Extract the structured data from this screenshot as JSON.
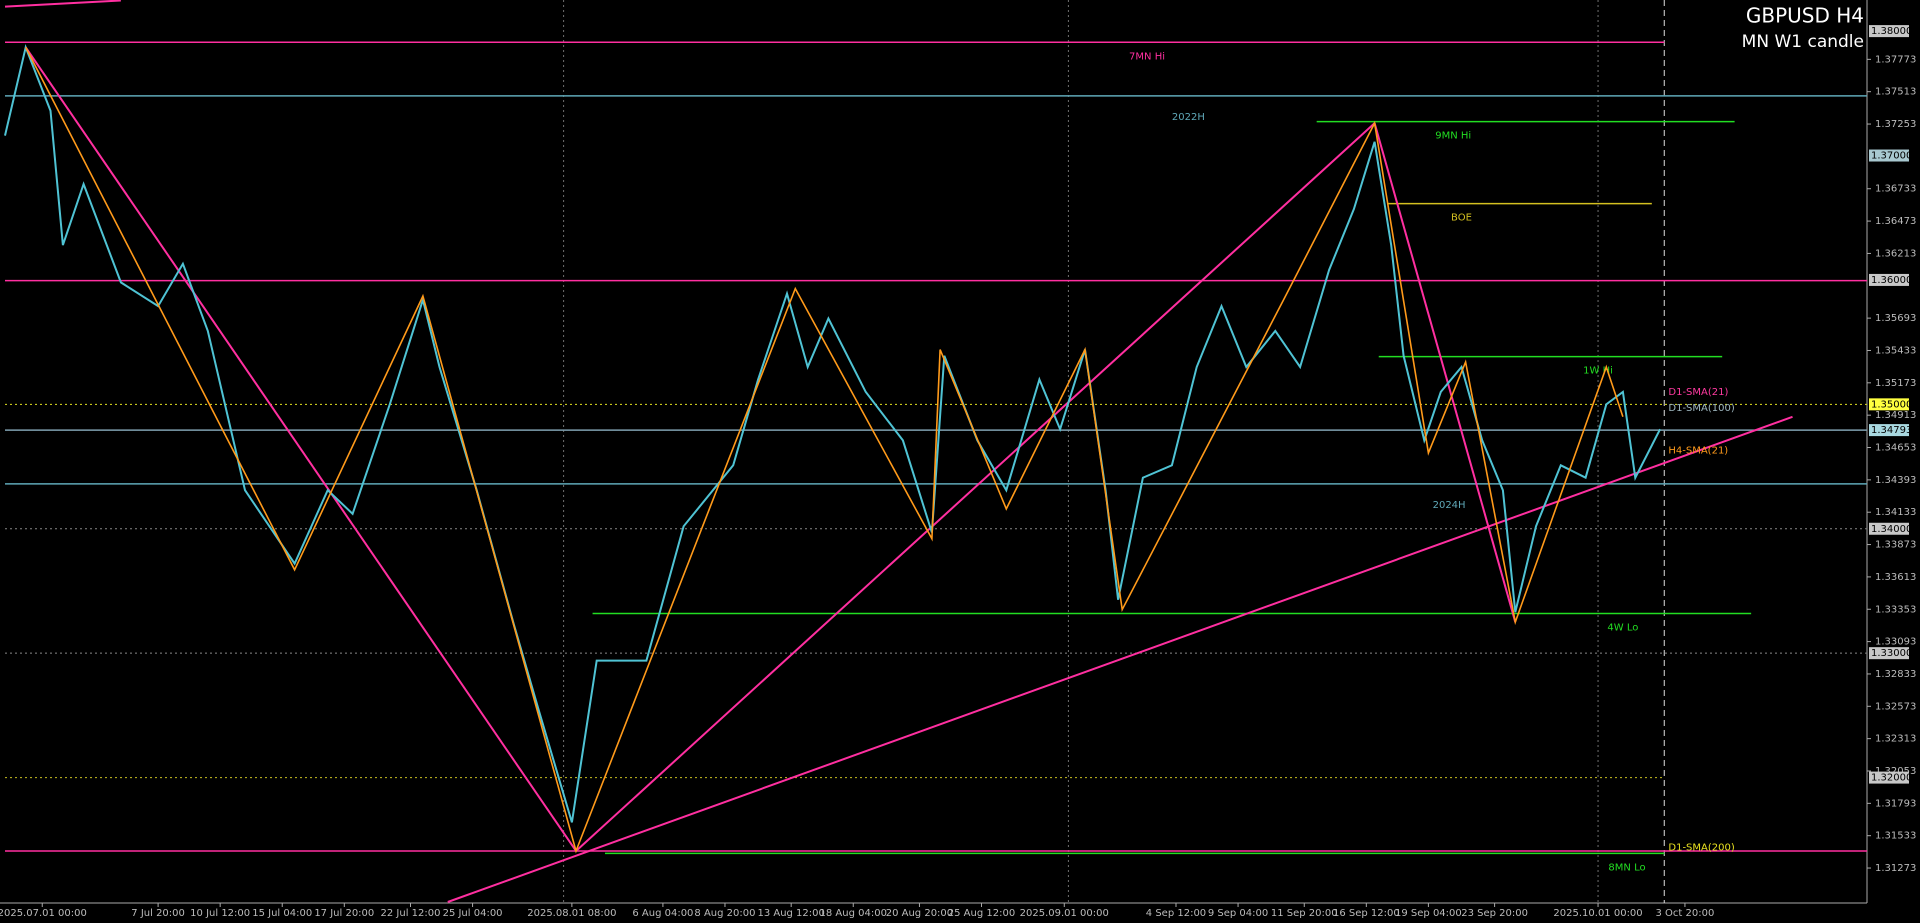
{
  "chart_data": {
    "type": "line",
    "title": "GBPUSD H4",
    "subtitle": "MN W1 candle",
    "xlim": [
      0,
      450
    ],
    "ylim": [
      1.31,
      1.3825
    ],
    "xticks": [
      {
        "value": 9,
        "label": "2025.07.01 00:00"
      },
      {
        "value": 37,
        "label": "7 Jul 20:00"
      },
      {
        "value": 52,
        "label": "10 Jul 12:00"
      },
      {
        "value": 67,
        "label": "15 Jul 04:00"
      },
      {
        "value": 82,
        "label": "17 Jul 20:00"
      },
      {
        "value": 98,
        "label": "22 Jul 12:00"
      },
      {
        "value": 113,
        "label": "25 Jul 04:00"
      },
      {
        "value": 137,
        "label": "2025.08.01 08:00"
      },
      {
        "value": 159,
        "label": "6 Aug 04:00"
      },
      {
        "value": 174,
        "label": "8 Aug 20:00"
      },
      {
        "value": 190,
        "label": "13 Aug 12:00"
      },
      {
        "value": 205,
        "label": "18 Aug 04:00"
      },
      {
        "value": 221,
        "label": "20 Aug 20:00"
      },
      {
        "value": 236,
        "label": "25 Aug 12:00"
      },
      {
        "value": 256,
        "label": "2025.09.01 00:00"
      },
      {
        "value": 283,
        "label": "4 Sep 12:00"
      },
      {
        "value": 298,
        "label": "9 Sep 04:00"
      },
      {
        "value": 314,
        "label": "11 Sep 20:00"
      },
      {
        "value": 329,
        "label": "16 Sep 12:00"
      },
      {
        "value": 344,
        "label": "19 Sep 04:00"
      },
      {
        "value": 360,
        "label": "23 Sep 20:00"
      },
      {
        "value": 385,
        "label": "2025.10.01 00:00"
      },
      {
        "value": 406,
        "label": "3 Oct 20:00"
      }
    ],
    "yticks": [
      1.37773,
      1.37513,
      1.37253,
      1.36733,
      1.36473,
      1.36213,
      1.35693,
      1.35433,
      1.35173,
      1.34913,
      1.34653,
      1.34393,
      1.34133,
      1.33873,
      1.33613,
      1.33353,
      1.33093,
      1.32833,
      1.32573,
      1.32313,
      1.32053,
      1.31793,
      1.31533,
      1.31273
    ],
    "price_labels": [
      {
        "value": 1.38,
        "label": "1.38000",
        "color": "#c8c8c8"
      },
      {
        "value": 1.37,
        "label": "1.37000",
        "color": "#a8c8d0"
      },
      {
        "value": 1.36,
        "label": "1.36000",
        "color": "#c8c8c8"
      },
      {
        "value": 1.35,
        "label": "1.35000",
        "color": "#ffff40"
      },
      {
        "value": 1.34793,
        "label": "1.34793",
        "color": "#a8d8e0"
      },
      {
        "value": 1.34,
        "label": "1.34000",
        "color": "#c8c8c8"
      },
      {
        "value": 1.33,
        "label": "1.33000",
        "color": "#c8c8c8"
      },
      {
        "value": 1.32,
        "label": "1.32000",
        "color": "#c8c8c8"
      }
    ],
    "series": [
      {
        "color": "#4fc3d4",
        "x": [
          0,
          5,
          11,
          14,
          19,
          28,
          37,
          43,
          49,
          58,
          70,
          78,
          84,
          93,
          101,
          105,
          114,
          123,
          129,
          137,
          143,
          155,
          164,
          176,
          182,
          189,
          194,
          199,
          208,
          217,
          224,
          227,
          235,
          242,
          250,
          255,
          261,
          266,
          269,
          275,
          282,
          288,
          294,
          300,
          307,
          313,
          320,
          326,
          331,
          335,
          338,
          343,
          347,
          352,
          357,
          362,
          365,
          370,
          376,
          382,
          387,
          391,
          394,
          400
        ],
        "values": [
          1.3716,
          1.3787,
          1.3736,
          1.3628,
          1.3677,
          1.3598,
          1.3579,
          1.3613,
          1.3559,
          1.3431,
          1.3372,
          1.3431,
          1.3412,
          1.35,
          1.3584,
          1.353,
          1.3431,
          1.3323,
          1.3254,
          1.3164,
          1.3294,
          1.3294,
          1.3402,
          1.3451,
          1.352,
          1.3589,
          1.353,
          1.3569,
          1.351,
          1.3471,
          1.3397,
          1.3539,
          1.3471,
          1.3431,
          1.352,
          1.348,
          1.3544,
          1.3431,
          1.3343,
          1.3441,
          1.3451,
          1.353,
          1.3579,
          1.353,
          1.3559,
          1.353,
          1.3608,
          1.3657,
          1.3711,
          1.3628,
          1.3539,
          1.3471,
          1.351,
          1.353,
          1.3471,
          1.3431,
          1.3333,
          1.3402,
          1.3451,
          1.3441,
          1.35,
          1.351,
          1.3441,
          1.348
        ]
      },
      {
        "color": "#ff9a1a",
        "x": [
          5,
          70,
          101,
          138,
          191,
          224,
          226,
          242,
          261,
          270,
          309,
          331,
          344,
          353,
          365,
          387,
          391
        ],
        "values": [
          1.3787,
          1.3367,
          1.3587,
          1.3141,
          1.3593,
          1.3392,
          1.3544,
          1.3416,
          1.3544,
          1.3335,
          1.3584,
          1.3726,
          1.3461,
          1.3534,
          1.3325,
          1.353,
          1.349
        ]
      }
    ],
    "trendlines": [
      {
        "x": [
          0,
          28
        ],
        "y": [
          1.38197,
          1.38246
        ],
        "color": "#ff2fa0"
      },
      {
        "x": [
          5,
          138
        ],
        "y": [
          1.3787,
          1.3141
        ],
        "color": "#ff2fa0"
      },
      {
        "x": [
          138,
          331
        ],
        "y": [
          1.3141,
          1.3726
        ],
        "color": "#ff2fa0"
      },
      {
        "x": [
          107,
          432
        ],
        "y": [
          1.31,
          1.349
        ],
        "color": "#ff2fa0"
      },
      {
        "x": [
          331,
          365
        ],
        "y": [
          1.3726,
          1.3325
        ],
        "color": "#ff2fa0"
      }
    ],
    "levels": [
      {
        "value": 1.3791,
        "x": [
          0,
          401
        ],
        "color": "#ff2fa0",
        "style": "solid",
        "label": "7MN Hi",
        "label_x": 276
      },
      {
        "value": 1.37479,
        "x": [
          0,
          450
        ],
        "color": "#5fa8b8",
        "style": "solid",
        "label": "2022H",
        "label_x": 286
      },
      {
        "value": 1.37272,
        "x": [
          317,
          418
        ],
        "color": "#22dd22",
        "style": "solid",
        "label": "9MN Hi",
        "label_x": 350
      },
      {
        "value": 1.36613,
        "x": [
          334,
          398
        ],
        "color": "#d4c020",
        "style": "solid",
        "label": "BOE",
        "label_x": 352
      },
      {
        "value": 1.35994,
        "x": [
          0,
          450
        ],
        "color": "#ff2fa0",
        "style": "solid"
      },
      {
        "value": 1.35384,
        "x": [
          332,
          415
        ],
        "color": "#22dd22",
        "style": "solid",
        "label": "1W Hi",
        "label_x": 385
      },
      {
        "value": 1.35,
        "x": [
          0,
          450
        ],
        "color": "#e0e020",
        "style": "dotted"
      },
      {
        "value": 1.34793,
        "x": [
          0,
          450
        ],
        "color": "#7fa0b0",
        "style": "solid"
      },
      {
        "value": 1.34361,
        "x": [
          0,
          450
        ],
        "color": "#5fa8b8",
        "style": "solid",
        "label": "2024H",
        "label_x": 349
      },
      {
        "value": 1.34,
        "x": [
          0,
          450
        ],
        "color": "#888888",
        "style": "dotted"
      },
      {
        "value": 1.33319,
        "x": [
          142,
          422
        ],
        "color": "#22dd22",
        "style": "solid",
        "label": "4W Lo",
        "label_x": 391
      },
      {
        "value": 1.33,
        "x": [
          0,
          450
        ],
        "color": "#888888",
        "style": "dotted"
      },
      {
        "value": 1.32,
        "x": [
          0,
          401
        ],
        "color": "#c8c020",
        "style": "dotted"
      },
      {
        "value": 1.3141,
        "x": [
          0,
          450
        ],
        "color": "#ff2fa0",
        "style": "solid"
      },
      {
        "value": 1.31391,
        "x": [
          145,
          401
        ],
        "color": "#22dd22",
        "style": "solid",
        "label": "8MN Lo",
        "label_x": 392
      }
    ],
    "annotations": [
      {
        "text": "D1-SMA(21)",
        "x": 402,
        "y": 1.351,
        "color": "#ff3aa0"
      },
      {
        "text": "D1-SMA(100)",
        "x": 402,
        "y": 1.3497,
        "color": "#9fb8c0"
      },
      {
        "text": "H4-SMA(21)",
        "x": 402,
        "y": 1.3463,
        "color": "#ff9a1a"
      },
      {
        "text": "D1-SMA(200)",
        "x": 402,
        "y": 1.3144,
        "color": "#e8e020"
      }
    ],
    "vertical_lines": [
      {
        "x": 135,
        "color": "#707070",
        "style": "dotted"
      },
      {
        "x": 257,
        "color": "#707070",
        "style": "dotted"
      },
      {
        "x": 385,
        "color": "#707070",
        "style": "dotted"
      },
      {
        "x": 401,
        "color": "#e0e0e0",
        "style": "dashed"
      }
    ]
  }
}
